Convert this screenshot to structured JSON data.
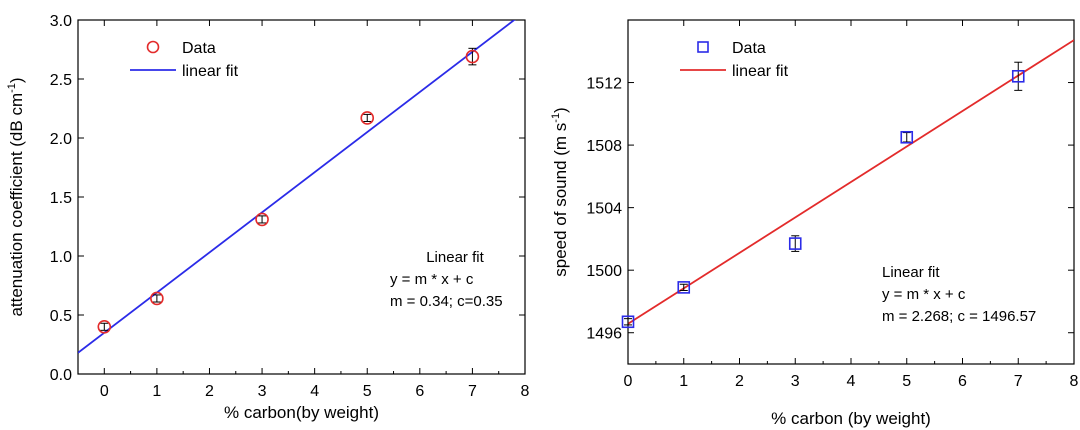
{
  "chart_data": [
    {
      "type": "scatter",
      "xlabel": "% carbon(by weight)",
      "ylabel": "attenuation coefficient (dB cm",
      "ylabel_sup": "-1",
      "ylabel_tail": ")",
      "xlim": [
        -0.5,
        8
      ],
      "ylim": [
        0.0,
        3.0
      ],
      "xticks": [
        "0",
        "1",
        "2",
        "3",
        "4",
        "5",
        "6",
        "7",
        "8"
      ],
      "yticks": [
        "0.0",
        "0.5",
        "1.0",
        "1.5",
        "2.0",
        "2.5",
        "3.0"
      ],
      "legend": {
        "placement": "top-left",
        "entries": [
          "Data",
          "linear fit"
        ]
      },
      "colors": {
        "data": "#e32b2b",
        "fit": "#2b2be8"
      },
      "series": [
        {
          "name": "Data",
          "marker": "circle",
          "x": [
            0,
            1,
            3,
            5,
            7
          ],
          "y": [
            0.4,
            0.64,
            1.31,
            2.17,
            2.69
          ],
          "err": [
            0.03,
            0.03,
            0.03,
            0.03,
            0.07
          ]
        },
        {
          "name": "linear fit",
          "line": true,
          "slope": 0.34,
          "intercept": 0.35
        }
      ],
      "annotation": [
        "Linear fit",
        "y = m * x + c",
        "m = 0.34; c=0.35"
      ]
    },
    {
      "type": "scatter",
      "xlabel": "% carbon (by weight)",
      "ylabel": "speed of sound (m s",
      "ylabel_sup": "-1",
      "ylabel_tail": ")",
      "xlim": [
        0,
        8
      ],
      "ylim": [
        1494,
        1516
      ],
      "xticks": [
        "0",
        "1",
        "2",
        "3",
        "4",
        "5",
        "6",
        "7",
        "8"
      ],
      "yticks": [
        "1496",
        "1500",
        "1504",
        "1508",
        "1512"
      ],
      "legend": {
        "placement": "top-left",
        "entries": [
          "Data",
          "linear fit"
        ]
      },
      "colors": {
        "data": "#2b2be8",
        "fit": "#e32b2b"
      },
      "series": [
        {
          "name": "Data",
          "marker": "square",
          "x": [
            0,
            1,
            3,
            5,
            7
          ],
          "y": [
            1496.7,
            1498.9,
            1501.7,
            1508.5,
            1512.4
          ],
          "err": [
            0.2,
            0.2,
            0.5,
            0.3,
            0.9
          ]
        },
        {
          "name": "linear fit",
          "line": true,
          "slope": 2.268,
          "intercept": 1496.57
        }
      ],
      "annotation": [
        "Linear fit",
        "y = m * x + c",
        "m = 2.268; c = 1496.57"
      ]
    }
  ]
}
